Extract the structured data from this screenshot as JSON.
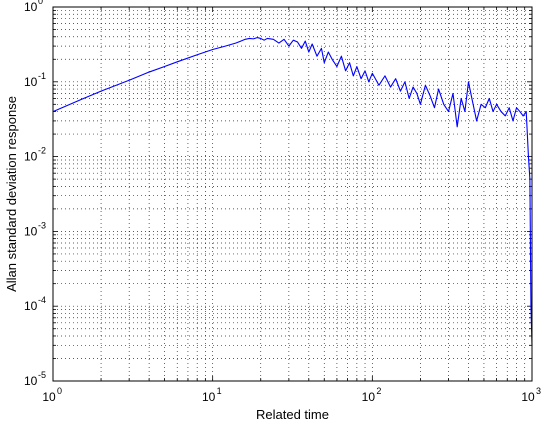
{
  "chart_data": {
    "type": "line",
    "xlabel": "Related time",
    "ylabel": "Allan standard deviation response",
    "xscale": "log",
    "yscale": "log",
    "xlim": [
      1,
      1000
    ],
    "ylim": [
      1e-05,
      1
    ],
    "grid": true,
    "x_ticks": [
      {
        "base": "10",
        "exp": "0"
      },
      {
        "base": "10",
        "exp": "1"
      },
      {
        "base": "10",
        "exp": "2"
      },
      {
        "base": "10",
        "exp": "3"
      }
    ],
    "y_ticks": [
      {
        "base": "10",
        "exp": "-5"
      },
      {
        "base": "10",
        "exp": "-4"
      },
      {
        "base": "10",
        "exp": "-3"
      },
      {
        "base": "10",
        "exp": "-2"
      },
      {
        "base": "10",
        "exp": "-1"
      },
      {
        "base": "10",
        "exp": "0"
      }
    ],
    "series": [
      {
        "color": "#0000ff",
        "x": [
          1,
          1.5,
          2,
          3,
          4,
          5,
          6,
          8,
          10,
          12,
          14,
          15,
          16,
          17,
          18,
          19,
          20,
          21,
          22,
          24,
          26,
          28,
          30,
          32,
          34,
          36,
          38,
          40,
          42,
          45,
          48,
          50,
          53,
          56,
          60,
          64,
          68,
          72,
          76,
          80,
          85,
          90,
          95,
          100,
          110,
          120,
          130,
          140,
          150,
          160,
          170,
          180,
          190,
          200,
          215,
          230,
          245,
          260,
          280,
          300,
          320,
          340,
          360,
          380,
          400,
          420,
          450,
          480,
          510,
          540,
          570,
          600,
          640,
          680,
          720,
          760,
          800,
          840,
          880,
          920,
          950,
          970,
          985,
          1000
        ],
        "y": [
          0.04,
          0.058,
          0.075,
          0.105,
          0.135,
          0.16,
          0.185,
          0.23,
          0.27,
          0.3,
          0.33,
          0.35,
          0.37,
          0.38,
          0.375,
          0.39,
          0.38,
          0.36,
          0.38,
          0.37,
          0.33,
          0.37,
          0.3,
          0.36,
          0.34,
          0.28,
          0.35,
          0.25,
          0.32,
          0.22,
          0.28,
          0.18,
          0.25,
          0.2,
          0.16,
          0.22,
          0.14,
          0.18,
          0.12,
          0.16,
          0.11,
          0.14,
          0.1,
          0.13,
          0.09,
          0.12,
          0.085,
          0.11,
          0.075,
          0.1,
          0.06,
          0.085,
          0.07,
          0.05,
          0.09,
          0.065,
          0.045,
          0.08,
          0.05,
          0.04,
          0.07,
          0.025,
          0.06,
          0.04,
          0.1,
          0.06,
          0.03,
          0.05,
          0.045,
          0.06,
          0.04,
          0.05,
          0.04,
          0.035,
          0.045,
          0.03,
          0.045,
          0.04,
          0.035,
          0.04,
          0.01,
          0.005,
          0.0001,
          3e-05
        ]
      }
    ]
  }
}
